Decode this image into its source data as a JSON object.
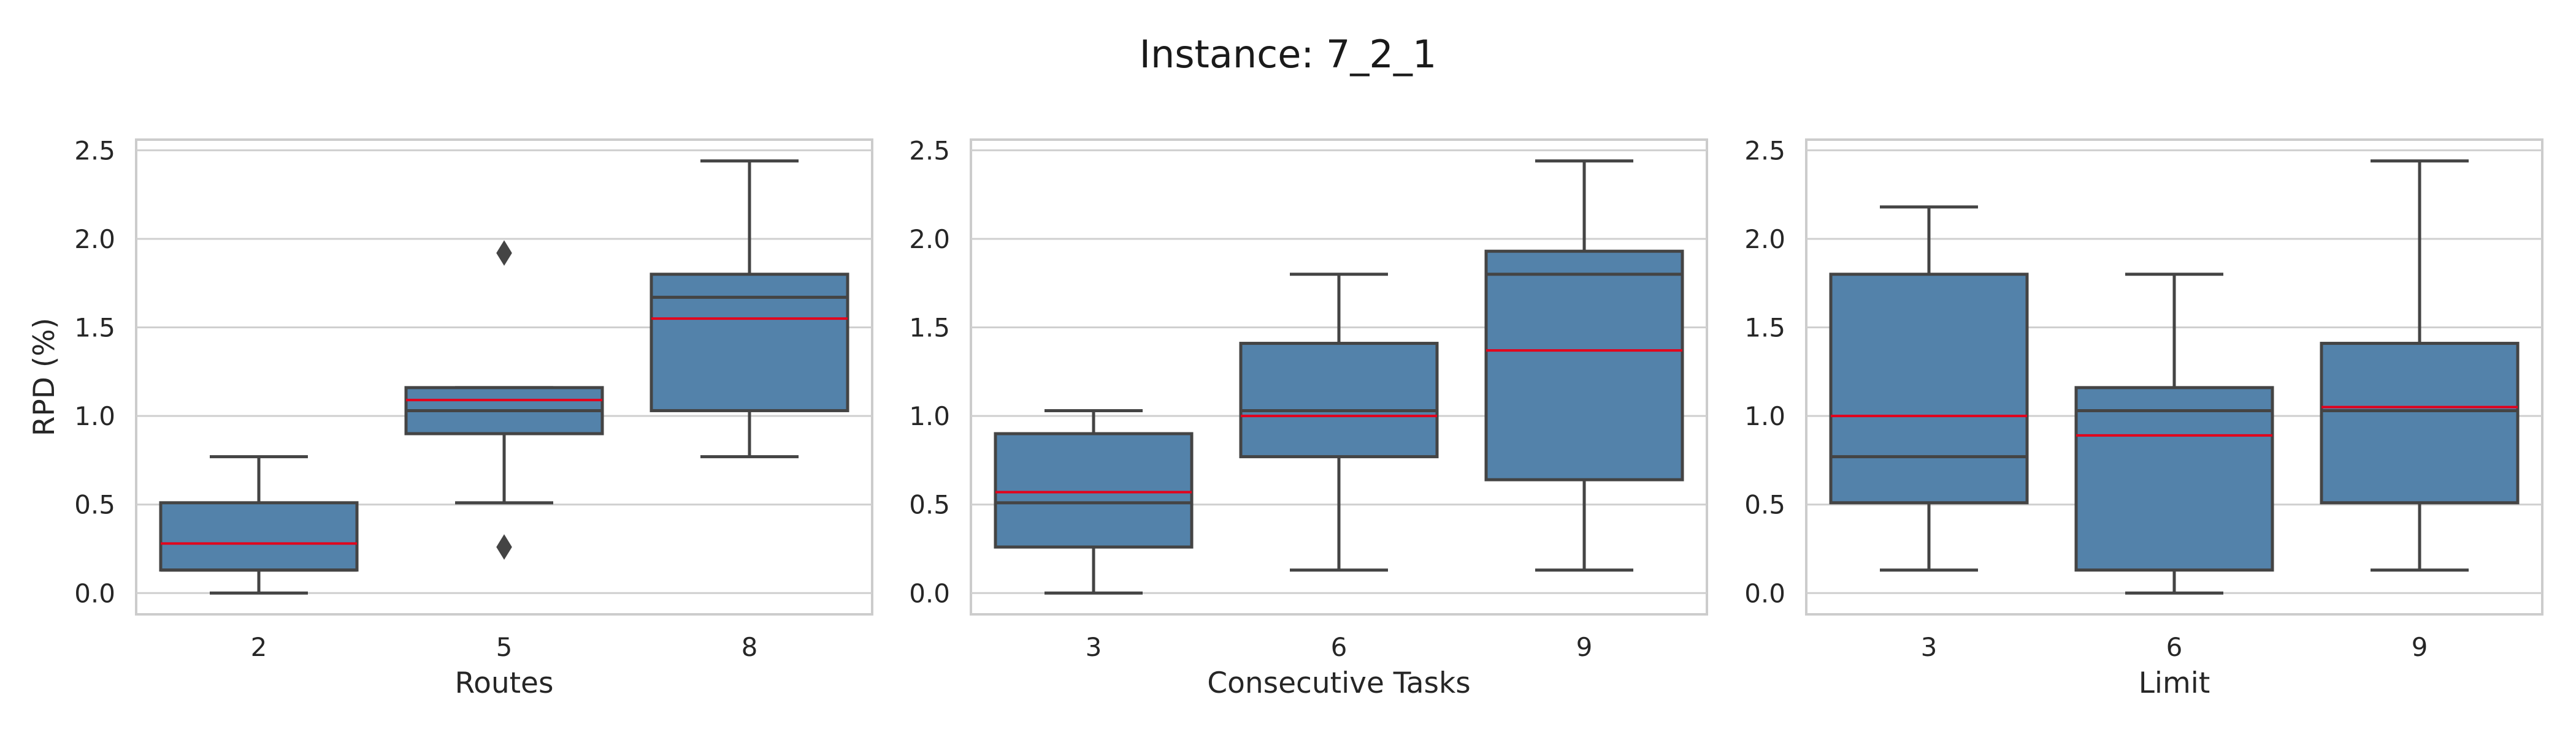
{
  "figure": {
    "title": "Instance: 7_2_1"
  },
  "colors": {
    "box": "#5382aa",
    "edge": "#444444",
    "median": "#444444",
    "mean": "#e3001b",
    "grid": "#cfcfcf",
    "frame": "#cccccc"
  },
  "chart_data": [
    {
      "type": "box",
      "xlabel": "Routes",
      "ylabel": "RPD (%)",
      "ylim": [
        -0.12,
        2.56
      ],
      "yticks": [
        "0.0",
        "0.5",
        "1.0",
        "1.5",
        "2.0",
        "2.5"
      ],
      "grid": true,
      "categories": [
        "2",
        "5",
        "8"
      ],
      "boxes": [
        {
          "whisker_low": 0.0,
          "q1": 0.13,
          "median": 0.13,
          "q3": 0.51,
          "whisker_high": 0.77,
          "mean": 0.28,
          "outliers": []
        },
        {
          "whisker_low": 0.51,
          "q1": 0.9,
          "median": 1.03,
          "q3": 1.16,
          "whisker_high": 1.16,
          "mean": 1.09,
          "outliers": [
            1.92,
            0.26
          ]
        },
        {
          "whisker_low": 0.77,
          "q1": 1.03,
          "median": 1.67,
          "q3": 1.8,
          "whisker_high": 2.44,
          "mean": 1.55,
          "outliers": []
        }
      ]
    },
    {
      "type": "box",
      "xlabel": "Consecutive Tasks",
      "ylabel": "",
      "ylim": [
        -0.12,
        2.56
      ],
      "yticks": [
        "0.0",
        "0.5",
        "1.0",
        "1.5",
        "2.0",
        "2.5"
      ],
      "grid": true,
      "categories": [
        "3",
        "6",
        "9"
      ],
      "boxes": [
        {
          "whisker_low": 0.0,
          "q1": 0.26,
          "median": 0.51,
          "q3": 0.9,
          "whisker_high": 1.03,
          "mean": 0.57,
          "outliers": []
        },
        {
          "whisker_low": 0.13,
          "q1": 0.77,
          "median": 1.03,
          "q3": 1.41,
          "whisker_high": 1.8,
          "mean": 1.0,
          "outliers": []
        },
        {
          "whisker_low": 0.13,
          "q1": 0.64,
          "median": 1.8,
          "q3": 1.93,
          "whisker_high": 2.44,
          "mean": 1.37,
          "outliers": []
        }
      ]
    },
    {
      "type": "box",
      "xlabel": "Limit",
      "ylabel": "",
      "ylim": [
        -0.12,
        2.56
      ],
      "yticks": [
        "0.0",
        "0.5",
        "1.0",
        "1.5",
        "2.0",
        "2.5"
      ],
      "grid": true,
      "categories": [
        "3",
        "6",
        "9"
      ],
      "boxes": [
        {
          "whisker_low": 0.13,
          "q1": 0.51,
          "median": 0.77,
          "q3": 1.8,
          "whisker_high": 2.18,
          "mean": 1.0,
          "outliers": []
        },
        {
          "whisker_low": 0.0,
          "q1": 0.13,
          "median": 1.03,
          "q3": 1.16,
          "whisker_high": 1.8,
          "mean": 0.89,
          "outliers": []
        },
        {
          "whisker_low": 0.13,
          "q1": 0.51,
          "median": 1.03,
          "q3": 1.41,
          "whisker_high": 2.44,
          "mean": 1.05,
          "outliers": []
        }
      ]
    }
  ]
}
